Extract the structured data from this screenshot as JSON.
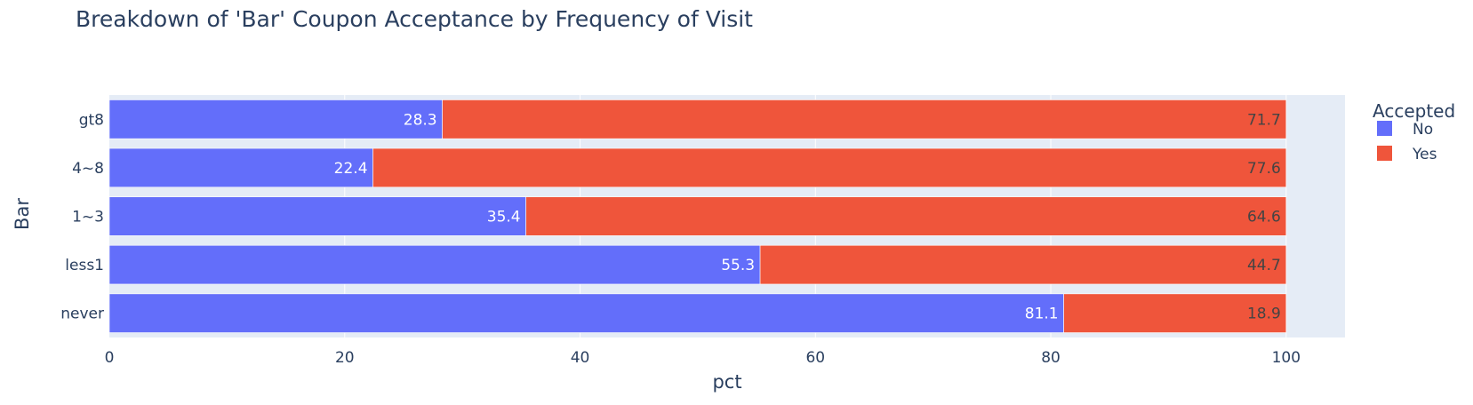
{
  "chart_data": {
    "type": "bar",
    "orientation": "horizontal",
    "stacked": true,
    "title": "Breakdown of 'Bar' Coupon Acceptance by Frequency of Visit",
    "xlabel": "pct",
    "ylabel": "Bar",
    "xlim": [
      0,
      105
    ],
    "xticks": [
      0,
      20,
      40,
      60,
      80,
      100
    ],
    "categories": [
      "never",
      "less1",
      "1~3",
      "4~8",
      "gt8"
    ],
    "series": [
      {
        "name": "No",
        "color": "#636efa",
        "values": [
          81.1,
          55.3,
          35.4,
          22.4,
          28.3
        ]
      },
      {
        "name": "Yes",
        "color": "#ef553b",
        "values": [
          18.9,
          44.7,
          64.6,
          77.6,
          71.7
        ]
      }
    ],
    "legend": {
      "title": "Accepted",
      "position": "right"
    },
    "grid": true,
    "colors": {
      "plot_background": "#e5ecf6",
      "gridline": "#ffffff",
      "text": "#2a3f5f"
    }
  }
}
